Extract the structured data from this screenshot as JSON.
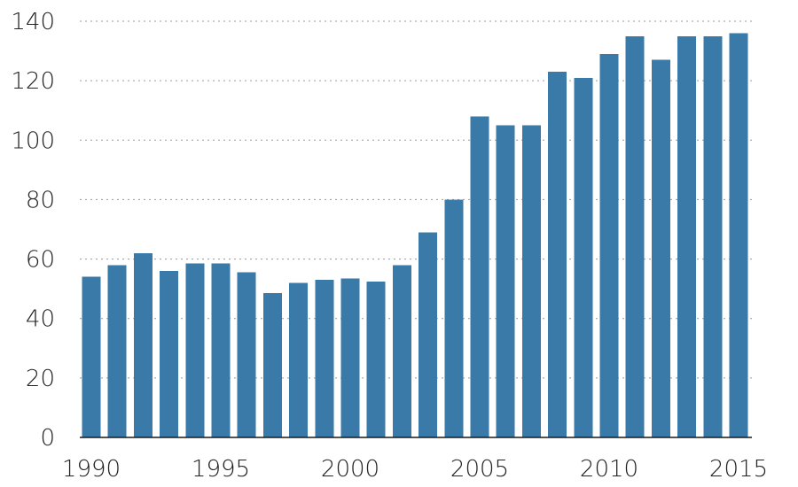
{
  "colors": {
    "bar": "#3a7aa8",
    "axis": "#1a1a1a",
    "grid": "#9a9a9a",
    "text": "#222222"
  },
  "chart_data": {
    "type": "bar",
    "title": "",
    "xlabel": "",
    "ylabel": "",
    "grid": true,
    "ylim": [
      0,
      140
    ],
    "yticks": [
      0,
      20,
      40,
      60,
      80,
      100,
      120,
      140
    ],
    "xticks": [
      1990,
      1995,
      2000,
      2005,
      2010,
      2015
    ],
    "categories": [
      1990,
      1991,
      1992,
      1993,
      1994,
      1995,
      1996,
      1997,
      1998,
      1999,
      2000,
      2001,
      2002,
      2003,
      2004,
      2005,
      2006,
      2007,
      2008,
      2009,
      2010,
      2011,
      2012,
      2013,
      2014,
      2015
    ],
    "values": [
      54,
      58,
      62,
      56,
      58.5,
      58.5,
      55.5,
      48.5,
      52,
      53,
      53.5,
      52.5,
      58,
      69,
      80,
      108,
      105,
      105,
      123,
      121,
      129,
      135,
      127,
      135,
      135,
      136
    ]
  }
}
